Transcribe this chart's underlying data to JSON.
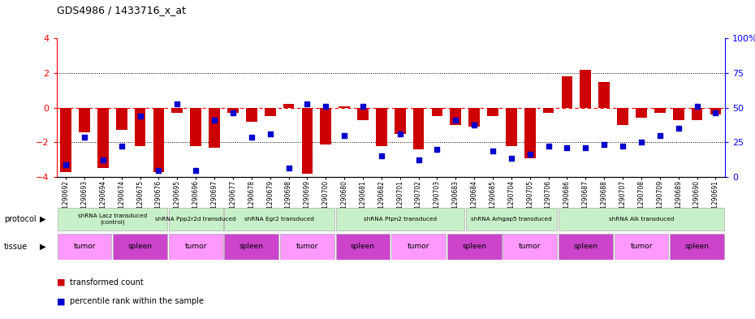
{
  "title": "GDS4986 / 1433716_x_at",
  "samples": [
    "GSM1290692",
    "GSM1290693",
    "GSM1290694",
    "GSM1290674",
    "GSM1290675",
    "GSM1290676",
    "GSM1290695",
    "GSM1290696",
    "GSM1290697",
    "GSM1290677",
    "GSM1290678",
    "GSM1290679",
    "GSM1290698",
    "GSM1290699",
    "GSM1290700",
    "GSM1290680",
    "GSM1290681",
    "GSM1290682",
    "GSM1290701",
    "GSM1290702",
    "GSM1290703",
    "GSM1290683",
    "GSM1290684",
    "GSM1290685",
    "GSM1290704",
    "GSM1290705",
    "GSM1290706",
    "GSM1290686",
    "GSM1290687",
    "GSM1290688",
    "GSM1290707",
    "GSM1290708",
    "GSM1290709",
    "GSM1290689",
    "GSM1290690",
    "GSM1290691"
  ],
  "red_values": [
    -3.7,
    -1.4,
    -3.5,
    -1.3,
    -2.2,
    -3.7,
    -0.3,
    -2.2,
    -2.3,
    -0.3,
    -0.8,
    -0.5,
    0.2,
    -3.8,
    -2.1,
    0.1,
    -0.7,
    -2.2,
    -1.5,
    -2.4,
    -0.5,
    -1.0,
    -1.1,
    -0.5,
    -2.2,
    -2.9,
    -0.3,
    1.8,
    2.2,
    1.5,
    -1.0,
    -0.6,
    -0.3,
    -0.7,
    -0.7,
    -0.4
  ],
  "blue_positions": [
    -3.3,
    -1.7,
    -3.0,
    -2.2,
    -0.5,
    -3.6,
    0.2,
    -3.6,
    -0.7,
    -0.3,
    -1.7,
    -1.5,
    -3.5,
    0.2,
    0.1,
    -1.6,
    0.1,
    -2.8,
    -1.5,
    -3.0,
    -2.4,
    -0.7,
    -1.0,
    -2.5,
    -2.9,
    -2.7,
    -2.2,
    -2.3,
    -2.3,
    -2.1,
    -2.2,
    -2.0,
    -1.6,
    -1.2,
    0.1,
    -0.3
  ],
  "protocols": [
    {
      "label": "shRNA Lacz transduced\n(control)",
      "start": 0,
      "end": 5,
      "color": "#c8f0c8"
    },
    {
      "label": "shRNA Ppp2r2d transduced",
      "start": 6,
      "end": 8,
      "color": "#c8f0c8"
    },
    {
      "label": "shRNA Egr2 transduced",
      "start": 9,
      "end": 14,
      "color": "#c8f0c8"
    },
    {
      "label": "shRNA Ptpn2 transduced",
      "start": 15,
      "end": 21,
      "color": "#c8f0c8"
    },
    {
      "label": "shRNA Arhgap5 transduced",
      "start": 22,
      "end": 26,
      "color": "#c8f0c8"
    },
    {
      "label": "shRNA Alk transduced",
      "start": 27,
      "end": 35,
      "color": "#c8f0c8"
    }
  ],
  "tissues": [
    {
      "label": "tumor",
      "start": 0,
      "end": 2
    },
    {
      "label": "spleen",
      "start": 3,
      "end": 5
    },
    {
      "label": "tumor",
      "start": 6,
      "end": 8
    },
    {
      "label": "spleen",
      "start": 9,
      "end": 11
    },
    {
      "label": "tumor",
      "start": 12,
      "end": 14
    },
    {
      "label": "spleen",
      "start": 15,
      "end": 17
    },
    {
      "label": "tumor",
      "start": 18,
      "end": 20
    },
    {
      "label": "spleen",
      "start": 21,
      "end": 23
    },
    {
      "label": "tumor",
      "start": 24,
      "end": 26
    },
    {
      "label": "spleen",
      "start": 27,
      "end": 29
    },
    {
      "label": "tumor",
      "start": 30,
      "end": 32
    },
    {
      "label": "spleen",
      "start": 33,
      "end": 35
    }
  ],
  "ylim": [
    -4,
    4
  ],
  "left_yticks": [
    -4,
    -2,
    0,
    2,
    4
  ],
  "right_yticks": [
    0,
    25,
    50,
    75,
    100
  ],
  "red_color": "#cc0000",
  "blue_color": "#0000cc",
  "tumor_color": "#ff99ff",
  "spleen_color": "#cc44cc",
  "protocol_color": "#c8f0c8"
}
